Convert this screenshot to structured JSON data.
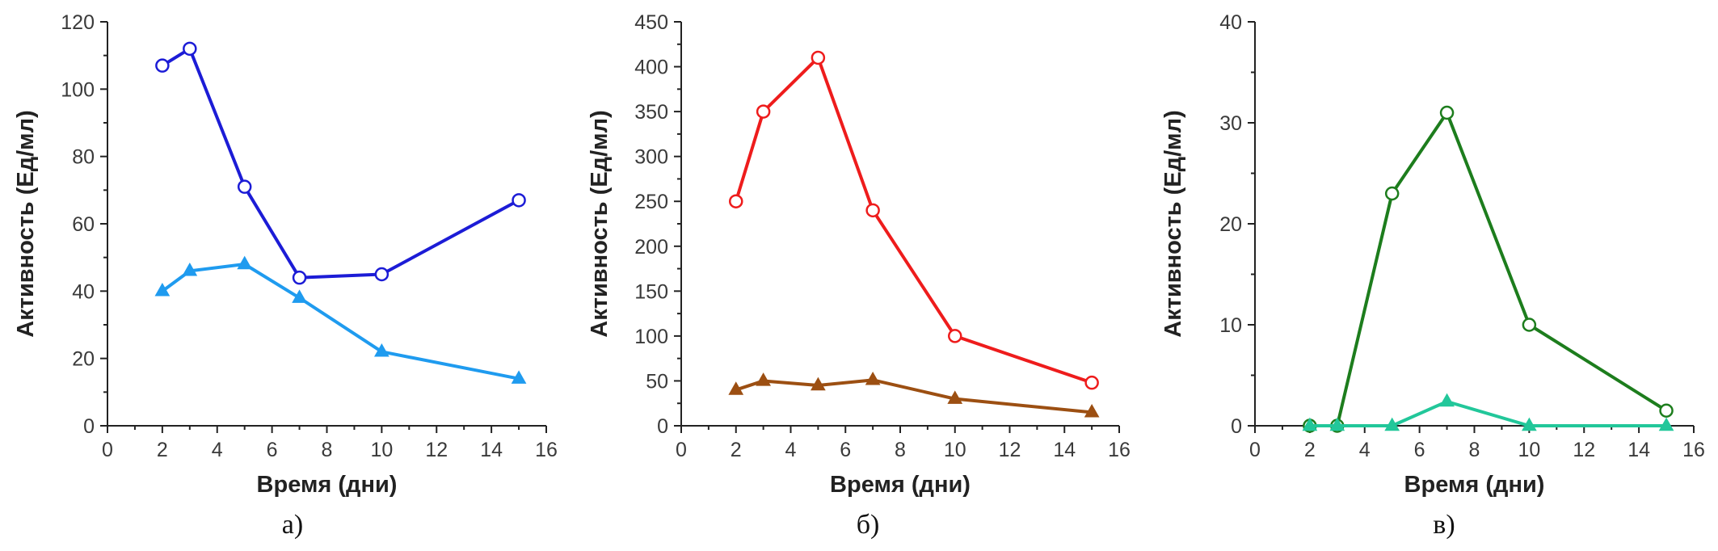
{
  "chart_data": [
    {
      "type": "line",
      "panel_label": "а)",
      "xlabel": "Время (дни)",
      "ylabel": "Активность (Ед/мл)",
      "xlim": [
        0,
        16
      ],
      "ylim": [
        0,
        120
      ],
      "xticks": [
        0,
        2,
        4,
        6,
        8,
        10,
        12,
        14,
        16
      ],
      "yticks": [
        0,
        20,
        40,
        60,
        80,
        100,
        120
      ],
      "series": [
        {
          "name": "series-circle",
          "marker": "circle",
          "color": "#1c1cd6",
          "x": [
            2,
            3,
            5,
            7,
            10,
            15
          ],
          "y": [
            107,
            112,
            71,
            44,
            45,
            67
          ]
        },
        {
          "name": "series-triangle",
          "marker": "triangle",
          "color": "#1f9bef",
          "x": [
            2,
            3,
            5,
            7,
            10,
            15
          ],
          "y": [
            40,
            46,
            48,
            38,
            22,
            14
          ]
        }
      ]
    },
    {
      "type": "line",
      "panel_label": "б)",
      "xlabel": "Время (дни)",
      "ylabel": "Активность (Ед/мл)",
      "xlim": [
        0,
        16
      ],
      "ylim": [
        0,
        450
      ],
      "xticks": [
        0,
        2,
        4,
        6,
        8,
        10,
        12,
        14,
        16
      ],
      "yticks": [
        0,
        50,
        100,
        150,
        200,
        250,
        300,
        350,
        400,
        450
      ],
      "series": [
        {
          "name": "series-circle",
          "marker": "circle",
          "color": "#ee1c1c",
          "x": [
            2,
            3,
            5,
            7,
            10,
            15
          ],
          "y": [
            250,
            350,
            410,
            240,
            100,
            48
          ]
        },
        {
          "name": "series-triangle",
          "marker": "triangle",
          "color": "#9c4f12",
          "x": [
            2,
            3,
            5,
            7,
            10,
            15
          ],
          "y": [
            40,
            50,
            45,
            51,
            30,
            15
          ]
        }
      ]
    },
    {
      "type": "line",
      "panel_label": "в)",
      "xlabel": "Время (дни)",
      "ylabel": "Активность (Ед/мл)",
      "xlim": [
        0,
        16
      ],
      "ylim": [
        0,
        40
      ],
      "xticks": [
        0,
        2,
        4,
        6,
        8,
        10,
        12,
        14,
        16
      ],
      "yticks": [
        0,
        10,
        20,
        30,
        40
      ],
      "series": [
        {
          "name": "series-circle",
          "marker": "circle",
          "color": "#1d7d1d",
          "x": [
            2,
            3,
            5,
            7,
            10,
            15
          ],
          "y": [
            0,
            0,
            23,
            31,
            10,
            1.5
          ]
        },
        {
          "name": "series-triangle",
          "marker": "triangle",
          "color": "#22c79a",
          "x": [
            2,
            3,
            5,
            7,
            10,
            15
          ],
          "y": [
            0,
            0,
            0,
            2.4,
            0,
            0
          ]
        }
      ]
    }
  ]
}
